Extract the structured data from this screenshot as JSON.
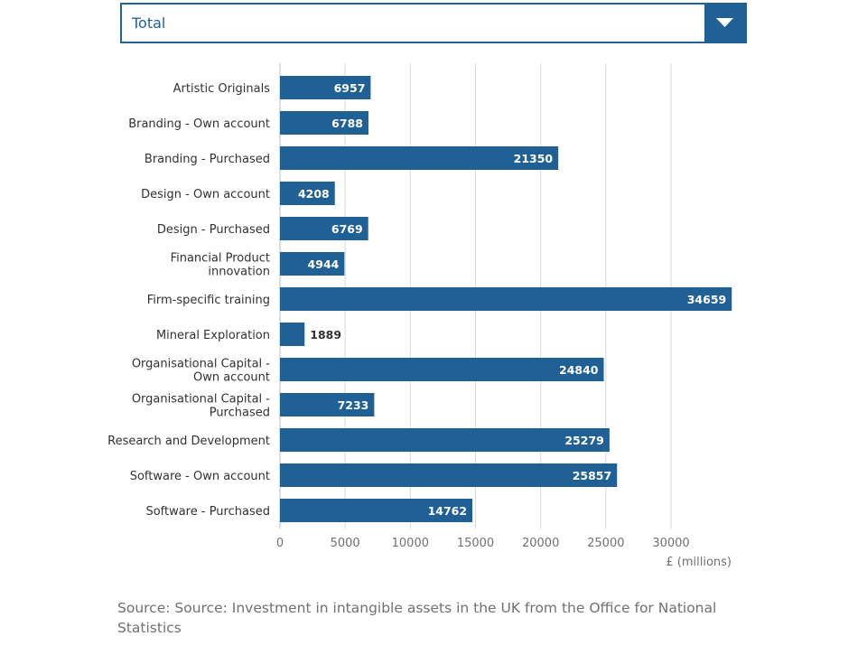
{
  "filter": {
    "selected": "Total",
    "icon": "chevron-down-icon"
  },
  "colors": {
    "bar": "#206095",
    "axis_text": "#707070",
    "grid": "#d9d9d9"
  },
  "chart_data": {
    "type": "bar",
    "orientation": "horizontal",
    "categories": [
      "Artistic Originals",
      "Branding - Own account",
      "Branding - Purchased",
      "Design - Own account",
      "Design - Purchased",
      "Financial Product innovation",
      "Firm-specific training",
      "Mineral Exploration",
      "Organisational Capital - Own account",
      "Organisational Capital - Purchased",
      "Research and Development",
      "Software - Own account",
      "Software - Purchased"
    ],
    "values": [
      6957,
      6788,
      21350,
      4208,
      6769,
      4944,
      34659,
      1889,
      24840,
      7233,
      25279,
      25857,
      14762
    ],
    "xlabel": "£ (millions)",
    "ylabel": "",
    "xlim": [
      0,
      35000
    ],
    "xticks": [
      0,
      5000,
      10000,
      15000,
      20000,
      25000,
      30000
    ],
    "grid": true,
    "data_labels": true
  },
  "source": "Source: Source: Investment in intangible assets in the UK from the Office for National Statistics"
}
